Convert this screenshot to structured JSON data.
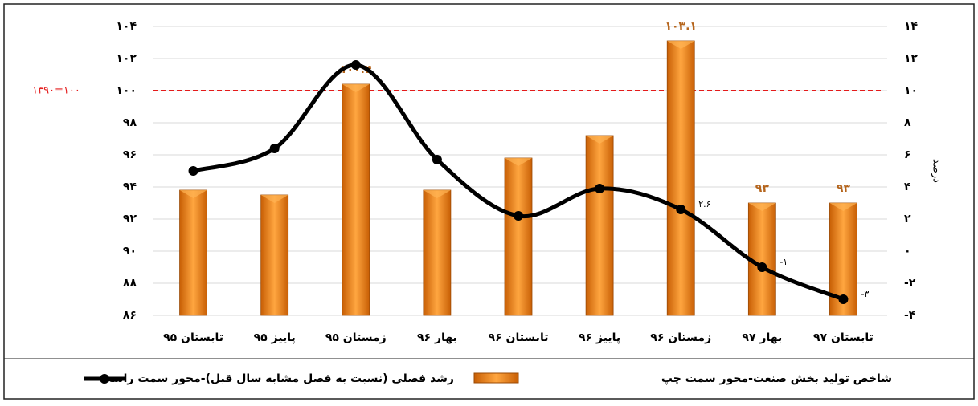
{
  "chart_data": {
    "type": "bar_line",
    "categories": [
      "تابستان ۹۵",
      "پاییز ۹۵",
      "زمستان ۹۵",
      "بهار ۹۶",
      "تابستان ۹۶",
      "پاییز ۹۶",
      "زمستان ۹۶",
      "بهار ۹۷",
      "تابستان ۹۷"
    ],
    "series": [
      {
        "name": "شاخص تولید بخش صنعت-محور سمت چپ",
        "type": "bar",
        "color": "#f28a1a",
        "values": [
          93.8,
          93.5,
          100.4,
          93.8,
          95.8,
          97.2,
          103.1,
          93,
          93
        ],
        "value_labels": [
          null,
          null,
          "۱۰۰.۴",
          null,
          null,
          null,
          "۱۰۳.۱",
          "۹۳",
          "۹۳"
        ]
      },
      {
        "name": "رشد فصلی (نسبت به فصل مشابه سال قبل)-محور سمت راست",
        "type": "line",
        "axis": "y2",
        "color": "#000000",
        "values": [
          5,
          6.4,
          11.6,
          5.7,
          2.2,
          3.9,
          2.6,
          -1,
          -3
        ],
        "value_labels": [
          null,
          null,
          null,
          null,
          null,
          null,
          "۲.۶",
          "-۱",
          "-۳"
        ]
      }
    ],
    "ylim": [
      86,
      104
    ],
    "yticks": [
      {
        "value": 86,
        "label": "۸۶"
      },
      {
        "value": 88,
        "label": "۸۸"
      },
      {
        "value": 90,
        "label": "۹۰"
      },
      {
        "value": 92,
        "label": "۹۲"
      },
      {
        "value": 94,
        "label": "۹۴"
      },
      {
        "value": 96,
        "label": "۹۶"
      },
      {
        "value": 98,
        "label": "۹۸"
      },
      {
        "value": 100,
        "label": "۱۰۰"
      },
      {
        "value": 102,
        "label": "۱۰۲"
      },
      {
        "value": 104,
        "label": "۱۰۴"
      }
    ],
    "y2lim": [
      -4,
      14
    ],
    "y2ticks": [
      {
        "value": -4,
        "label": "-۴"
      },
      {
        "value": -2,
        "label": "-۲"
      },
      {
        "value": 0,
        "label": "۰"
      },
      {
        "value": 2,
        "label": "۲"
      },
      {
        "value": 4,
        "label": "۴"
      },
      {
        "value": 6,
        "label": "۶"
      },
      {
        "value": 8,
        "label": "۸"
      },
      {
        "value": 10,
        "label": "۱۰"
      },
      {
        "value": 12,
        "label": "۱۲"
      },
      {
        "value": 14,
        "label": "۱۴"
      }
    ],
    "y2label": "درصد",
    "reference_line": {
      "value": 100,
      "label": "۱۳۹۰=۱۰۰",
      "color": "#e41a1a"
    },
    "grid": true,
    "legend": "bottom"
  }
}
